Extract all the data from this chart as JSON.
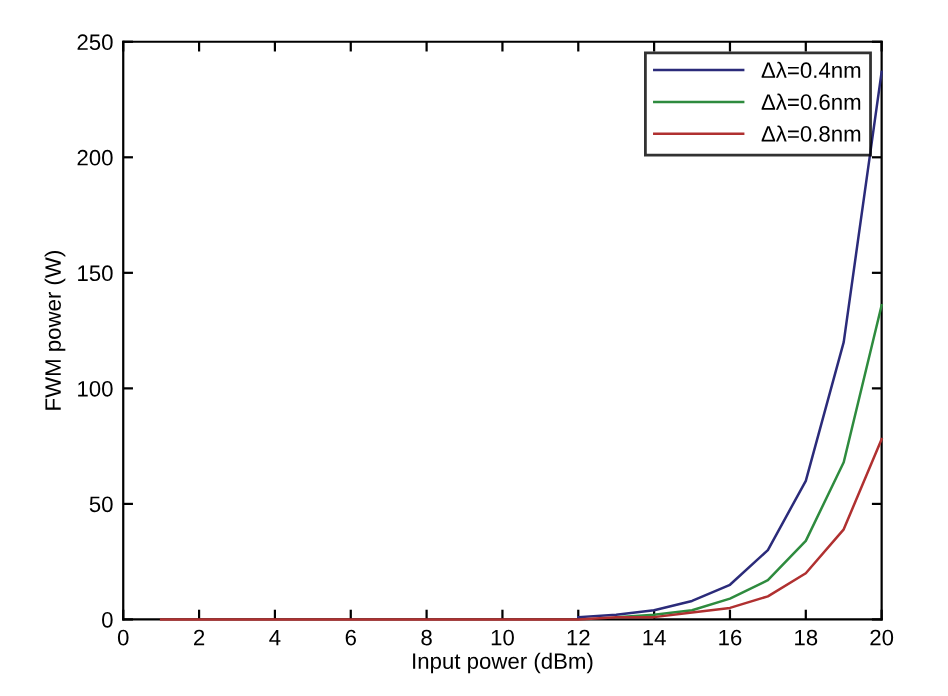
{
  "chart_data": {
    "type": "line",
    "xlabel": "Input power (dBm)",
    "ylabel": "FWM power (W)",
    "x": [
      1,
      2,
      3,
      4,
      5,
      6,
      7,
      8,
      9,
      10,
      11,
      12,
      13,
      14,
      15,
      16,
      17,
      18,
      19,
      20
    ],
    "series": [
      {
        "name": "Δλ=0.4nm",
        "color": "#2b2b7a",
        "values": [
          null,
          null,
          null,
          null,
          null,
          null,
          null,
          null,
          null,
          null,
          null,
          1,
          2,
          4,
          8,
          15,
          30,
          60,
          120,
          237
        ]
      },
      {
        "name": "Δλ=0.6nm",
        "color": "#2e8b3e",
        "values": [
          null,
          null,
          null,
          null,
          null,
          null,
          null,
          null,
          null,
          null,
          null,
          null,
          1,
          2,
          4,
          9,
          17,
          34,
          68,
          136
        ]
      },
      {
        "name": "Δλ=0.8nm",
        "color": "#b03030",
        "values": [
          0,
          0,
          0,
          0,
          0,
          0,
          0,
          0,
          0,
          0,
          0,
          0,
          1,
          1,
          3,
          5,
          10,
          20,
          39,
          78
        ]
      }
    ],
    "xlim": [
      0,
      20
    ],
    "xticks": [
      0,
      2,
      4,
      6,
      8,
      10,
      12,
      14,
      16,
      18,
      20
    ],
    "ylim": [
      0,
      250
    ],
    "yticks": [
      0,
      50,
      100,
      150,
      200,
      250
    ],
    "grid": false,
    "legend": "top right"
  }
}
